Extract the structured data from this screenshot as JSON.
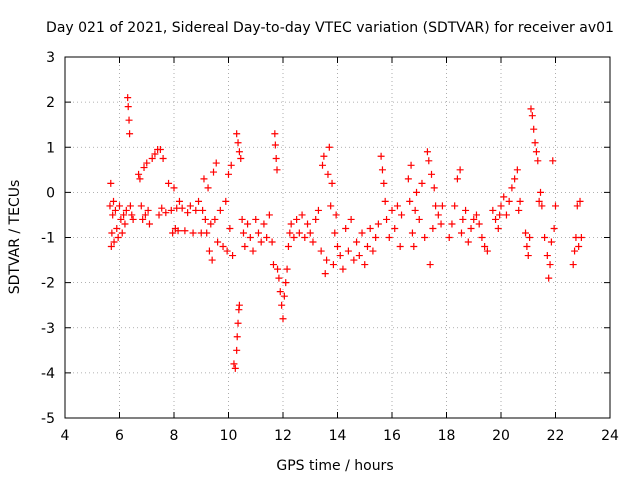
{
  "chart_data": {
    "type": "scatter",
    "title": "Day 021 of 2021, Sidereal Day-to-day VTEC variation (SDTVAR) for receiver av01",
    "xlabel": "GPS time / hours",
    "ylabel": "SDTVAR / TECUs",
    "xlim": [
      4,
      24
    ],
    "ylim": [
      -5,
      3
    ],
    "xticks": [
      4,
      6,
      8,
      10,
      12,
      14,
      16,
      18,
      20,
      22,
      24
    ],
    "yticks": [
      -5,
      -4,
      -3,
      -2,
      -1,
      0,
      1,
      2,
      3
    ],
    "marker": "+",
    "series_color": "#ff0000",
    "grid": true,
    "grid_style": "dotted",
    "legend": "none",
    "series": [
      {
        "name": "SDTVAR",
        "note": "approximate trace of the plotted points, read from the axes",
        "points": [
          [
            5.65,
            -0.3
          ],
          [
            5.68,
            0.2
          ],
          [
            5.7,
            -1.2
          ],
          [
            5.72,
            -0.9
          ],
          [
            5.75,
            -0.5
          ],
          [
            5.78,
            -0.2
          ],
          [
            5.8,
            -1.1
          ],
          [
            5.85,
            -0.4
          ],
          [
            5.9,
            -0.8
          ],
          [
            5.95,
            -1.0
          ],
          [
            6.0,
            -0.3
          ],
          [
            6.05,
            -0.6
          ],
          [
            6.1,
            -0.9
          ],
          [
            6.15,
            -0.5
          ],
          [
            6.2,
            -0.7
          ],
          [
            6.25,
            -0.4
          ],
          [
            6.3,
            2.1
          ],
          [
            6.32,
            1.9
          ],
          [
            6.35,
            1.6
          ],
          [
            6.37,
            1.3
          ],
          [
            6.4,
            -0.3
          ],
          [
            6.45,
            -0.5
          ],
          [
            6.5,
            -0.6
          ],
          [
            6.7,
            0.4
          ],
          [
            6.75,
            0.3
          ],
          [
            6.8,
            -0.3
          ],
          [
            6.85,
            -0.6
          ],
          [
            6.9,
            0.55
          ],
          [
            6.95,
            -0.5
          ],
          [
            7.0,
            0.65
          ],
          [
            7.05,
            -0.4
          ],
          [
            7.1,
            -0.7
          ],
          [
            7.2,
            0.75
          ],
          [
            7.3,
            0.85
          ],
          [
            7.4,
            0.95
          ],
          [
            7.45,
            -0.5
          ],
          [
            7.5,
            0.95
          ],
          [
            7.55,
            -0.35
          ],
          [
            7.6,
            0.75
          ],
          [
            7.7,
            -0.45
          ],
          [
            7.8,
            0.2
          ],
          [
            7.9,
            -0.4
          ],
          [
            7.95,
            -0.9
          ],
          [
            8.0,
            0.1
          ],
          [
            8.05,
            -0.8
          ],
          [
            8.1,
            -0.35
          ],
          [
            8.15,
            -0.85
          ],
          [
            8.2,
            -0.2
          ],
          [
            8.3,
            -0.35
          ],
          [
            8.4,
            -0.85
          ],
          [
            8.5,
            -0.45
          ],
          [
            8.6,
            -0.3
          ],
          [
            8.7,
            -0.9
          ],
          [
            8.8,
            -0.4
          ],
          [
            8.9,
            -0.2
          ],
          [
            9.0,
            -0.9
          ],
          [
            9.05,
            -0.4
          ],
          [
            9.1,
            0.3
          ],
          [
            9.15,
            -0.6
          ],
          [
            9.2,
            -0.9
          ],
          [
            9.25,
            0.1
          ],
          [
            9.3,
            -1.3
          ],
          [
            9.35,
            -0.7
          ],
          [
            9.4,
            -1.5
          ],
          [
            9.45,
            0.45
          ],
          [
            9.5,
            -0.6
          ],
          [
            9.55,
            0.65
          ],
          [
            9.6,
            -1.1
          ],
          [
            9.7,
            -0.4
          ],
          [
            9.8,
            -1.2
          ],
          [
            9.9,
            -0.2
          ],
          [
            9.95,
            -1.3
          ],
          [
            10.0,
            0.4
          ],
          [
            10.05,
            -0.8
          ],
          [
            10.1,
            0.6
          ],
          [
            10.15,
            -1.4
          ],
          [
            10.2,
            -3.8
          ],
          [
            10.25,
            -3.9
          ],
          [
            10.3,
            -3.5
          ],
          [
            10.32,
            -3.2
          ],
          [
            10.35,
            -2.9
          ],
          [
            10.38,
            -2.6
          ],
          [
            10.4,
            -2.5
          ],
          [
            10.3,
            1.3
          ],
          [
            10.35,
            1.1
          ],
          [
            10.4,
            0.9
          ],
          [
            10.45,
            0.75
          ],
          [
            10.5,
            -0.6
          ],
          [
            10.55,
            -0.9
          ],
          [
            10.6,
            -1.2
          ],
          [
            10.7,
            -0.7
          ],
          [
            10.8,
            -1.0
          ],
          [
            10.9,
            -1.3
          ],
          [
            11.0,
            -0.6
          ],
          [
            11.1,
            -0.9
          ],
          [
            11.2,
            -1.1
          ],
          [
            11.3,
            -0.7
          ],
          [
            11.4,
            -1.0
          ],
          [
            11.5,
            -0.5
          ],
          [
            11.6,
            -1.1
          ],
          [
            11.65,
            -1.6
          ],
          [
            11.7,
            1.3
          ],
          [
            11.72,
            1.05
          ],
          [
            11.75,
            0.75
          ],
          [
            11.78,
            0.5
          ],
          [
            11.8,
            -1.7
          ],
          [
            11.85,
            -1.9
          ],
          [
            11.9,
            -2.2
          ],
          [
            11.95,
            -2.5
          ],
          [
            12.0,
            -2.8
          ],
          [
            12.05,
            -2.3
          ],
          [
            12.1,
            -2.0
          ],
          [
            12.15,
            -1.7
          ],
          [
            12.2,
            -1.2
          ],
          [
            12.25,
            -0.9
          ],
          [
            12.3,
            -0.7
          ],
          [
            12.4,
            -1.0
          ],
          [
            12.5,
            -0.6
          ],
          [
            12.6,
            -0.9
          ],
          [
            12.7,
            -0.5
          ],
          [
            12.8,
            -1.0
          ],
          [
            12.9,
            -0.7
          ],
          [
            13.0,
            -0.9
          ],
          [
            13.1,
            -1.1
          ],
          [
            13.2,
            -0.6
          ],
          [
            13.3,
            -0.4
          ],
          [
            13.4,
            -1.3
          ],
          [
            13.45,
            0.6
          ],
          [
            13.5,
            0.8
          ],
          [
            13.55,
            -1.8
          ],
          [
            13.6,
            -1.5
          ],
          [
            13.65,
            0.4
          ],
          [
            13.7,
            1.0
          ],
          [
            13.75,
            -0.3
          ],
          [
            13.8,
            0.2
          ],
          [
            13.85,
            -1.6
          ],
          [
            13.9,
            -0.9
          ],
          [
            13.95,
            -0.5
          ],
          [
            14.0,
            -1.2
          ],
          [
            14.1,
            -1.4
          ],
          [
            14.2,
            -1.7
          ],
          [
            14.3,
            -0.8
          ],
          [
            14.4,
            -1.3
          ],
          [
            14.5,
            -0.6
          ],
          [
            14.6,
            -1.5
          ],
          [
            14.7,
            -1.1
          ],
          [
            14.8,
            -1.4
          ],
          [
            14.9,
            -0.9
          ],
          [
            15.0,
            -1.6
          ],
          [
            15.1,
            -1.2
          ],
          [
            15.2,
            -0.8
          ],
          [
            15.3,
            -1.3
          ],
          [
            15.4,
            -1.0
          ],
          [
            15.5,
            -0.7
          ],
          [
            15.6,
            0.8
          ],
          [
            15.65,
            0.5
          ],
          [
            15.7,
            0.2
          ],
          [
            15.75,
            -0.2
          ],
          [
            15.8,
            -0.6
          ],
          [
            15.9,
            -1.0
          ],
          [
            16.0,
            -0.4
          ],
          [
            16.1,
            -0.8
          ],
          [
            16.2,
            -0.3
          ],
          [
            16.3,
            -1.2
          ],
          [
            16.35,
            -0.5
          ],
          [
            16.6,
            0.3
          ],
          [
            16.65,
            -0.2
          ],
          [
            16.7,
            0.6
          ],
          [
            16.75,
            -0.9
          ],
          [
            16.8,
            -1.2
          ],
          [
            16.85,
            -0.4
          ],
          [
            16.9,
            0.0
          ],
          [
            17.0,
            -0.6
          ],
          [
            17.1,
            0.2
          ],
          [
            17.2,
            -1.0
          ],
          [
            17.3,
            0.9
          ],
          [
            17.35,
            0.7
          ],
          [
            17.4,
            -1.6
          ],
          [
            17.45,
            0.4
          ],
          [
            17.5,
            -0.8
          ],
          [
            17.55,
            0.1
          ],
          [
            17.6,
            -0.3
          ],
          [
            17.7,
            -0.5
          ],
          [
            17.8,
            -0.7
          ],
          [
            17.85,
            -0.3
          ],
          [
            18.1,
            -1.0
          ],
          [
            18.2,
            -0.7
          ],
          [
            18.3,
            -0.3
          ],
          [
            18.4,
            0.3
          ],
          [
            18.5,
            0.5
          ],
          [
            18.55,
            -0.9
          ],
          [
            18.6,
            -0.6
          ],
          [
            18.7,
            -0.4
          ],
          [
            18.8,
            -1.1
          ],
          [
            18.9,
            -0.8
          ],
          [
            19.0,
            -0.6
          ],
          [
            19.1,
            -0.5
          ],
          [
            19.2,
            -0.7
          ],
          [
            19.3,
            -1.0
          ],
          [
            19.4,
            -1.2
          ],
          [
            19.5,
            -1.3
          ],
          [
            19.7,
            -0.4
          ],
          [
            19.8,
            -0.6
          ],
          [
            19.9,
            -0.8
          ],
          [
            19.95,
            -0.5
          ],
          [
            20.0,
            -0.3
          ],
          [
            20.1,
            -0.1
          ],
          [
            20.2,
            -0.5
          ],
          [
            20.3,
            -0.2
          ],
          [
            20.4,
            0.1
          ],
          [
            20.5,
            0.3
          ],
          [
            20.6,
            0.5
          ],
          [
            20.65,
            -0.4
          ],
          [
            20.7,
            -0.2
          ],
          [
            20.9,
            -0.9
          ],
          [
            20.95,
            -1.2
          ],
          [
            21.0,
            -1.4
          ],
          [
            21.05,
            -1.0
          ],
          [
            21.1,
            1.85
          ],
          [
            21.15,
            1.7
          ],
          [
            21.2,
            1.4
          ],
          [
            21.25,
            1.1
          ],
          [
            21.3,
            0.9
          ],
          [
            21.35,
            0.7
          ],
          [
            21.4,
            -0.2
          ],
          [
            21.45,
            0.0
          ],
          [
            21.5,
            -0.3
          ],
          [
            21.6,
            -1.0
          ],
          [
            21.7,
            -1.4
          ],
          [
            21.75,
            -1.9
          ],
          [
            21.8,
            -1.6
          ],
          [
            21.85,
            -1.1
          ],
          [
            21.9,
            0.7
          ],
          [
            21.95,
            -0.8
          ],
          [
            22.0,
            -0.3
          ],
          [
            22.65,
            -1.6
          ],
          [
            22.7,
            -1.3
          ],
          [
            22.75,
            -1.0
          ],
          [
            22.8,
            -0.3
          ],
          [
            22.85,
            -1.2
          ],
          [
            22.9,
            -0.2
          ],
          [
            22.95,
            -1.0
          ]
        ]
      }
    ]
  }
}
